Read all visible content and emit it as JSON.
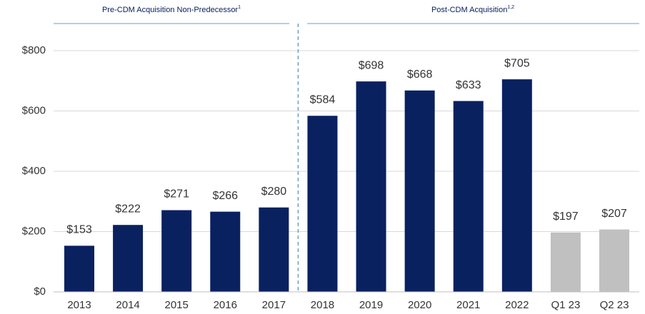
{
  "chart_data": {
    "type": "bar",
    "annotations": [
      {
        "text": "Pre-CDM Acquisition Non-Predecessor",
        "note": "1"
      },
      {
        "text": "Post-CDM Acquisition",
        "note": "1,2"
      }
    ],
    "categories": [
      "2013",
      "2014",
      "2015",
      "2016",
      "2017",
      "2018",
      "2019",
      "2020",
      "2021",
      "2022",
      "Q1 23",
      "Q2 23"
    ],
    "values": [
      153,
      222,
      271,
      266,
      280,
      584,
      698,
      668,
      633,
      705,
      197,
      207
    ],
    "value_labels": [
      "$153",
      "$222",
      "$271",
      "$266",
      "$280",
      "$584",
      "$698",
      "$668",
      "$633",
      "$705",
      "$197",
      "$207"
    ],
    "colors": [
      "#0a2160",
      "#0a2160",
      "#0a2160",
      "#0a2160",
      "#0a2160",
      "#0a2160",
      "#0a2160",
      "#0a2160",
      "#0a2160",
      "#0a2160",
      "#c0c0c0",
      "#c0c0c0"
    ],
    "ylim": [
      0,
      800
    ],
    "yticks": [
      {
        "value": 0,
        "label": "$0"
      },
      {
        "value": 200,
        "label": "$200"
      },
      {
        "value": 400,
        "label": "$400"
      },
      {
        "value": 600,
        "label": "$600"
      },
      {
        "value": 800,
        "label": "$800"
      }
    ],
    "grid": true
  }
}
